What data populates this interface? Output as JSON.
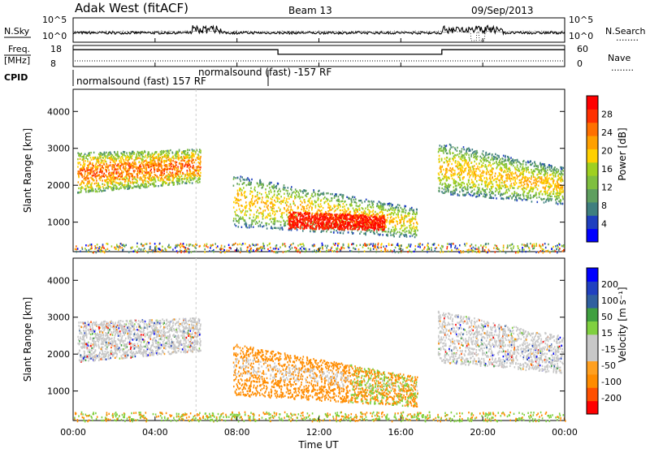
{
  "header": {
    "radar": "Adak West (fitACF)",
    "beam": "Beam 13",
    "date": "09/Sep/2013"
  },
  "panel_labels": {
    "nsky": "N.Sky",
    "nsearch": "N.Search",
    "freq": "Freq.",
    "freq_unit": "[MHz]",
    "nave": "Nave",
    "cpid": "CPID",
    "dotted_key": "........"
  },
  "colors": {
    "power_scale": [
      "#0000ff",
      "#1f3fbf",
      "#3f7f7f",
      "#5f9f5f",
      "#7fbf3f",
      "#9fd020",
      "#ffd000",
      "#ffa000",
      "#ff7000",
      "#ff3000",
      "#ff0000"
    ],
    "velocity_scale": [
      "#ff0000",
      "#ff5000",
      "#ff8c00",
      "#ffa020",
      "#c8c8c8",
      "#c8c8c8",
      "#80d040",
      "#40a040",
      "#3060a0",
      "#2040c0",
      "#0000ff"
    ]
  },
  "chart_data": [
    {
      "type": "line",
      "name": "noise",
      "ylabel_left": "N.Sky",
      "ylabel_right": "N.Search",
      "left_ticks": [
        "10^5",
        "10^0"
      ],
      "right_ticks": [
        "10^5",
        "10^0"
      ]
    },
    {
      "type": "line",
      "name": "frequency-nave",
      "left_ticks": [
        "18",
        "8"
      ],
      "right_ticks": [
        "60",
        "0"
      ],
      "frequency_steps": [
        {
          "t_start": 0,
          "t_end": 10,
          "level": 0.8
        },
        {
          "t_start": 10,
          "t_end": 18,
          "level": 0.58
        },
        {
          "t_start": 18,
          "t_end": 24,
          "level": 0.8
        }
      ]
    },
    {
      "type": "table",
      "name": "cpid",
      "entries": [
        {
          "text": "normalsound (fast) 157 RF"
        },
        {
          "text": "normalsound (fast) -157 RF"
        }
      ]
    },
    {
      "type": "heatmap",
      "name": "power",
      "ylabel": "Slant Range [km]",
      "yticks": [
        1000,
        2000,
        3000,
        4000
      ],
      "ylim": [
        200,
        4600
      ],
      "colorbar_label": "Power [dB]",
      "colorbar_ticks": [
        4,
        8,
        12,
        16,
        20,
        24,
        28
      ]
    },
    {
      "type": "heatmap",
      "name": "velocity",
      "ylabel": "Slant Range [km]",
      "yticks": [
        1000,
        2000,
        3000,
        4000
      ],
      "ylim": [
        200,
        4600
      ],
      "colorbar_label": "Velocity [m s⁻¹]",
      "colorbar_ticks": [
        200,
        100,
        50,
        15,
        -15,
        -50,
        -100,
        -200
      ]
    }
  ],
  "time_axis": {
    "xlabel": "Time UT",
    "ticks": [
      "00:00",
      "04:00",
      "08:00",
      "12:00",
      "16:00",
      "20:00",
      "00:00"
    ]
  }
}
